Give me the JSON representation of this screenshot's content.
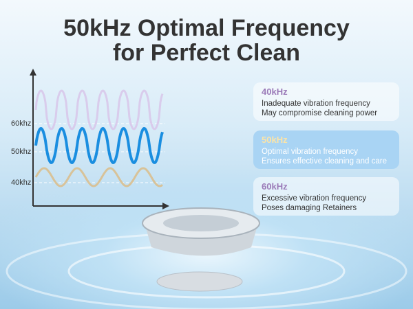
{
  "header": {
    "title_line1": "50kHz Optimal Frequency",
    "title_line2": "for Perfect Clean"
  },
  "graph": {
    "axis_labels": [
      "60khz",
      "50khz",
      "40khz"
    ]
  },
  "cards": [
    {
      "title": "40kHz",
      "line1": "Inadequate vibration frequency",
      "line2": "May compromise cleaning power"
    },
    {
      "title": "50kHz",
      "line1": "Optimal vibration frequency",
      "line2": "Ensures effective cleaning and care"
    },
    {
      "title": "60kHz",
      "line1": "Excessive vibration frequency",
      "line2": "Poses damaging Retainers"
    }
  ]
}
